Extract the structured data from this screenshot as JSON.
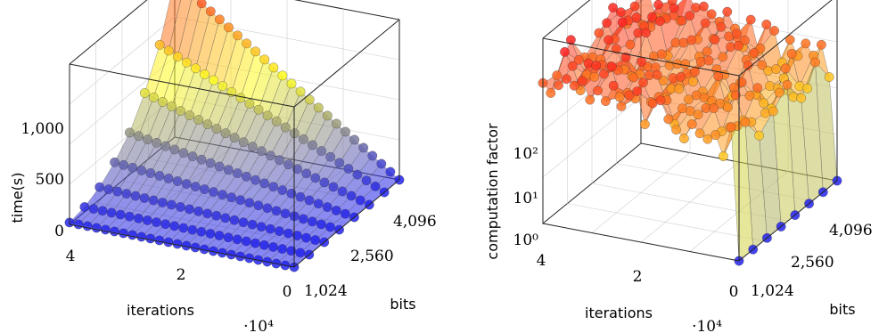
{
  "chart_data": [
    {
      "type": "surface",
      "xlabel": "iterations",
      "x_multiplier": "·10⁴",
      "ylabel": "bits",
      "zlabel": "time(s)",
      "x_ticks": [
        "4",
        "2",
        "0"
      ],
      "y_ticks": [
        "1,024",
        "2,560",
        "4,096"
      ],
      "z_ticks": [
        "0",
        "500",
        "1,000"
      ],
      "xlim": [
        0,
        4
      ],
      "ylim": [
        1024,
        4608
      ],
      "zlim": [
        0,
        1300
      ],
      "z_scale": "linear",
      "grid": true,
      "colormap": [
        "#2222ee",
        "#ffff22",
        "#ff2222"
      ],
      "iterations_x1e4": [
        0,
        0.16,
        0.32,
        0.48,
        0.64,
        0.8,
        0.96,
        1.12,
        1.28,
        1.44,
        1.6,
        1.76,
        1.92,
        2.08,
        2.24,
        2.4,
        2.56,
        2.72,
        2.88,
        3.04,
        3.2,
        3.36,
        3.52,
        3.68,
        3.84,
        4.0
      ],
      "bits": [
        1024,
        1536,
        2048,
        2560,
        3072,
        3584,
        4096,
        4608
      ],
      "time_s_at_max_iterations": [
        15,
        40,
        100,
        200,
        340,
        560,
        850,
        1280
      ]
    },
    {
      "type": "surface",
      "xlabel": "iterations",
      "x_multiplier": "·10⁴",
      "ylabel": "bits",
      "zlabel": "computation factor",
      "x_ticks": [
        "4",
        "2",
        "0"
      ],
      "y_ticks": [
        "1,024",
        "2,560",
        "4,096"
      ],
      "z_ticks": [
        "10⁰",
        "10¹",
        "10²"
      ],
      "xlim": [
        0,
        4
      ],
      "ylim": [
        1024,
        4608
      ],
      "zlim": [
        1,
        1000
      ],
      "z_scale": "log",
      "grid": true,
      "colormap": [
        "#2222ee",
        "#ffff22",
        "#ff2222"
      ],
      "iterations_x1e4": [
        0,
        0.16,
        0.32,
        0.48,
        0.64,
        0.8,
        0.96,
        1.12,
        1.28,
        1.44,
        1.6,
        1.76,
        1.92,
        2.08,
        2.24,
        2.4,
        2.56,
        2.72,
        2.88,
        3.04,
        3.2,
        3.36,
        3.52,
        3.68,
        3.84,
        4.0
      ],
      "bits": [
        1024,
        1536,
        2048,
        2560,
        3072,
        3584,
        4096,
        4608
      ],
      "factor_at_zero_iterations": [
        1,
        1,
        1,
        1,
        1,
        1,
        1,
        1
      ],
      "factor_typical_range": [
        30,
        400
      ]
    }
  ]
}
